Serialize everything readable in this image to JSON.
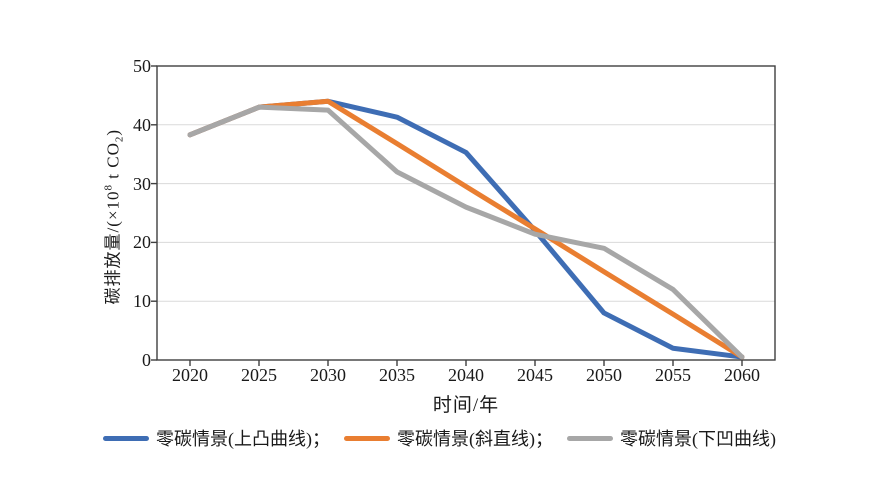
{
  "chart_data": {
    "type": "line",
    "title": "",
    "xlabel": "时间/年",
    "ylabel": "碳排放量/(×10⁸ t CO₂)",
    "ylabel_parts": {
      "prefix": "碳排放量/(×10",
      "superscript": "8",
      "mid": " t CO",
      "subscript": "2",
      "suffix": ")"
    },
    "x": [
      2020,
      2025,
      2030,
      2035,
      2040,
      2045,
      2050,
      2055,
      2060
    ],
    "x_tick_labels": [
      "2020",
      "2025",
      "2030",
      "2035",
      "2040",
      "2045",
      "2050",
      "2055",
      "2060"
    ],
    "y_ticks": [
      0,
      10,
      20,
      30,
      40,
      50
    ],
    "ylim": [
      0,
      50
    ],
    "grid": "horizontal",
    "legend_position": "bottom",
    "series": [
      {
        "name": "零碳情景(上凸曲线)",
        "legend_label": "零碳情景(上凸曲线)；",
        "color": "#3E6DB4",
        "values": [
          38.3,
          43,
          44,
          41.3,
          35.3,
          22,
          8,
          2,
          0.5
        ]
      },
      {
        "name": "零碳情景(斜直线)",
        "legend_label": "零碳情景(斜直线)；",
        "color": "#E97E31",
        "values": [
          38.3,
          43,
          44,
          36.8,
          29.5,
          22.3,
          15,
          7.8,
          0.5
        ]
      },
      {
        "name": "零碳情景(下凹曲线)",
        "legend_label": "零碳情景(下凹曲线)",
        "color": "#A7A7A7",
        "values": [
          38.3,
          43,
          42.5,
          32,
          26,
          21.4,
          19,
          12,
          0.5
        ]
      }
    ],
    "style": {
      "axis_color": "#3f3f3f",
      "gridline_color": "#dadada",
      "text_color": "#1a1a1a",
      "line_width": 5
    }
  }
}
